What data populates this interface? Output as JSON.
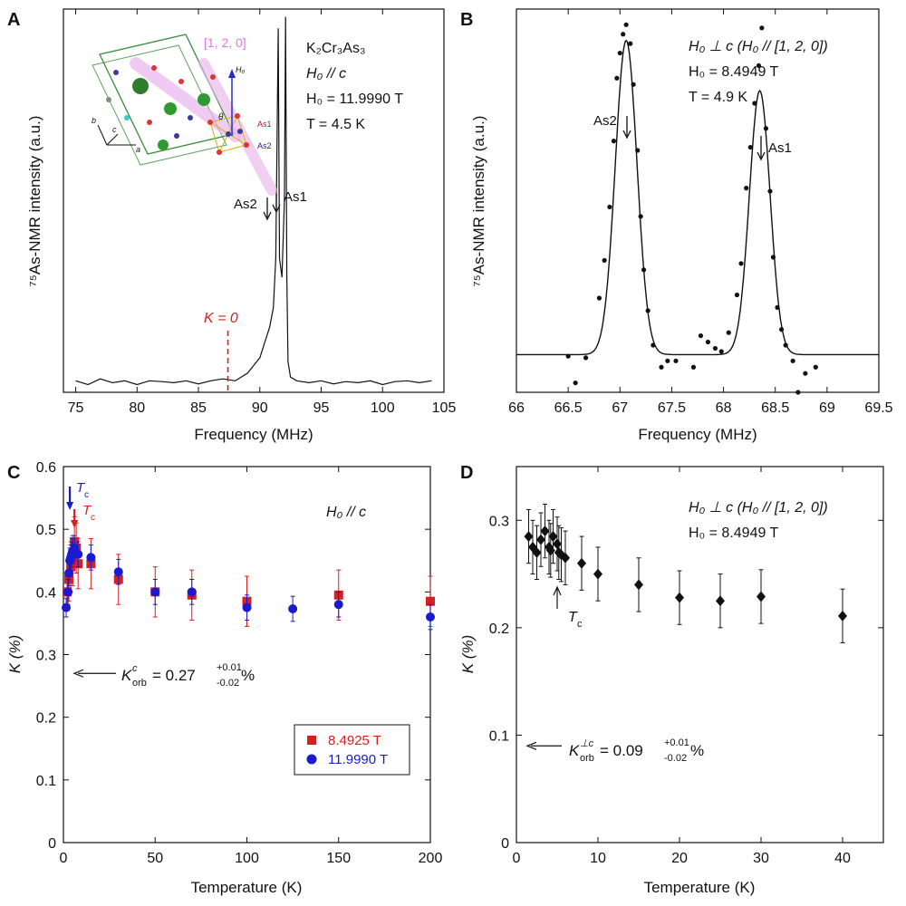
{
  "figure": {
    "colors": {
      "axis": "#111111",
      "red": "#d42020",
      "blue": "#1a1ad0",
      "pink": "#d77be0",
      "green": "#3a8a3a"
    }
  },
  "chart_data": [
    {
      "panel": "A",
      "type": "line",
      "xlabel": "Frequency (MHz)",
      "ylabel": "⁷⁵As-NMR intensity (a.u.)",
      "xlim": [
        74,
        105
      ],
      "xticks": [
        75,
        80,
        85,
        90,
        95,
        100,
        105
      ],
      "ylim": [
        0,
        1
      ],
      "annotations": {
        "compound": "K₂Cr₃As₃",
        "field_dir": "H₀ // c",
        "field": "H₀ = 11.9990 T",
        "temp": "T = 4.5 K",
        "k0": "K = 0",
        "as2": "As2",
        "as1": "As1",
        "inset_dir": "[1, 2, 0]",
        "inset_h0": "H₀",
        "inset_theta": "θ",
        "inset_as1": "As1",
        "inset_as2": "As2",
        "inset_a": "a",
        "inset_b": "b",
        "inset_c": "c"
      },
      "k0_position": 87.4,
      "series": [
        {
          "x": [
            75,
            76,
            77,
            78,
            79,
            80,
            81,
            82,
            83,
            84,
            85,
            86,
            87,
            88,
            89,
            89.5,
            90,
            90.4,
            90.8,
            91.1,
            91.3,
            91.5,
            91.6,
            91.8,
            92.0,
            92.1,
            92.2,
            92.3,
            92.5,
            93,
            94,
            95,
            96,
            97,
            98,
            99,
            100,
            101,
            102,
            103,
            104
          ],
          "y": [
            0.03,
            0.02,
            0.035,
            0.025,
            0.03,
            0.02,
            0.03,
            0.028,
            0.025,
            0.03,
            0.022,
            0.03,
            0.035,
            0.03,
            0.05,
            0.07,
            0.09,
            0.13,
            0.17,
            0.22,
            0.35,
            0.95,
            0.35,
            0.3,
            0.5,
            0.98,
            0.3,
            0.08,
            0.04,
            0.03,
            0.025,
            0.03,
            0.022,
            0.028,
            0.025,
            0.03,
            0.02,
            0.028,
            0.03,
            0.025,
            0.03
          ]
        }
      ]
    },
    {
      "panel": "B",
      "type": "scatter",
      "xlabel": "Frequency (MHz)",
      "ylabel": "⁷⁵As-NMR intensity (a.u.)",
      "xlim": [
        66,
        69.5
      ],
      "xticks": [
        66,
        66.5,
        67,
        67.5,
        68,
        68.5,
        69,
        69.5
      ],
      "ylim": [
        -0.12,
        1.1
      ],
      "annotations": {
        "field_dir": "H₀ ⊥ c (H₀ // [1, 2, 0])",
        "field": "H₀ = 8.4949 T",
        "temp": "T = 4.9 K",
        "as2": "As2",
        "as1": "As1"
      },
      "fit": {
        "baseline": 0.0,
        "peaks": [
          {
            "x0": 67.06,
            "amp": 1.0,
            "sigma": 0.105
          },
          {
            "x0": 68.35,
            "amp": 0.84,
            "sigma": 0.1
          }
        ]
      },
      "points": {
        "x": [
          66.5,
          66.57,
          66.67,
          66.8,
          66.85,
          66.9,
          66.94,
          66.97,
          67.0,
          67.03,
          67.06,
          67.1,
          67.13,
          67.17,
          67.2,
          67.23,
          67.27,
          67.32,
          67.4,
          67.46,
          67.54,
          67.71,
          67.78,
          67.85,
          67.92,
          67.98,
          68.05,
          68.13,
          68.17,
          68.22,
          68.26,
          68.3,
          68.34,
          68.37,
          68.41,
          68.45,
          68.48,
          68.52,
          68.56,
          68.6,
          68.67,
          68.72,
          68.79,
          68.89
        ],
        "y": [
          -0.005,
          -0.09,
          -0.01,
          0.18,
          0.3,
          0.47,
          0.68,
          0.88,
          0.96,
          1.02,
          1.05,
          0.99,
          0.86,
          0.65,
          0.44,
          0.27,
          0.14,
          0.03,
          -0.04,
          -0.02,
          -0.02,
          -0.04,
          0.06,
          0.04,
          0.02,
          0.01,
          0.07,
          0.19,
          0.29,
          0.53,
          0.66,
          0.8,
          0.92,
          1.04,
          0.72,
          0.52,
          0.31,
          0.15,
          0.08,
          0.03,
          -0.02,
          -0.12,
          -0.06,
          -0.04
        ]
      }
    },
    {
      "panel": "C",
      "type": "scatter",
      "xlabel": "Temperature (K)",
      "ylabel": "K (%)",
      "xlim": [
        0,
        200
      ],
      "xticks": [
        0,
        50,
        100,
        150,
        200
      ],
      "ylim": [
        0,
        0.6
      ],
      "yticks": [
        0,
        0.1,
        0.2,
        0.3,
        0.4,
        0.5,
        0.6
      ],
      "annotations": {
        "field_dir": "H₀ // c",
        "korb_text": "K",
        "korb_sup": "c",
        "korb_sub": "orb",
        "korb_value": "= 0.27",
        "korb_plus": "+0.01",
        "korb_minus": "-0.02",
        "korb_unit": " %",
        "tc_label": "T",
        "tc_sub": "c"
      },
      "korb": 0.27,
      "tc_blue": 3.5,
      "tc_red": 6.0,
      "series": [
        {
          "name": "8.4925 T",
          "color": "#d42020",
          "marker": "square",
          "x": [
            2,
            3,
            4,
            5,
            6,
            7,
            8,
            15,
            30,
            50,
            70,
            100,
            150,
            200
          ],
          "y": [
            0.4,
            0.42,
            0.44,
            0.45,
            0.48,
            0.47,
            0.445,
            0.445,
            0.42,
            0.4,
            0.395,
            0.385,
            0.395,
            0.385
          ],
          "err": [
            0.03,
            0.035,
            0.04,
            0.04,
            0.04,
            0.04,
            0.04,
            0.04,
            0.04,
            0.04,
            0.04,
            0.04,
            0.04,
            0.04
          ]
        },
        {
          "name": "11.9990 T",
          "color": "#1a1ad0",
          "marker": "circle",
          "x": [
            1.5,
            2.5,
            3,
            3.5,
            4,
            4.5,
            5,
            6,
            8,
            15,
            30,
            50,
            70,
            100,
            125,
            150,
            200
          ],
          "y": [
            0.375,
            0.4,
            0.43,
            0.45,
            0.455,
            0.46,
            0.465,
            0.47,
            0.46,
            0.455,
            0.432,
            0.4,
            0.4,
            0.375,
            0.373,
            0.38,
            0.36
          ],
          "err": [
            0.015,
            0.02,
            0.02,
            0.02,
            0.02,
            0.02,
            0.02,
            0.02,
            0.02,
            0.02,
            0.02,
            0.02,
            0.02,
            0.02,
            0.02,
            0.02,
            0.02
          ]
        }
      ]
    },
    {
      "panel": "D",
      "type": "scatter",
      "xlabel": "Temperature (K)",
      "ylabel": "K (%)",
      "xlim": [
        0,
        45
      ],
      "xticks": [
        0,
        10,
        20,
        30,
        40
      ],
      "ylim": [
        0,
        0.35
      ],
      "yticks": [
        0,
        0.1,
        0.2,
        0.3
      ],
      "annotations": {
        "field_dir": "H₀ ⊥ c (H₀ // [1, 2, 0])",
        "field": "H₀ = 8.4949 T",
        "korb_text": "K",
        "korb_sup": "⊥c",
        "korb_sub": "orb",
        "korb_value": "= 0.09",
        "korb_plus": "+0.01",
        "korb_minus": "-0.02",
        "korb_unit": "%",
        "tc_label": "T",
        "tc_sub": "c"
      },
      "korb": 0.09,
      "tc": 5.0,
      "series": [
        {
          "marker": "diamond",
          "color": "#111111",
          "x": [
            1.5,
            2.0,
            2.5,
            3.0,
            3.5,
            4.0,
            4.2,
            4.5,
            5.0,
            5.2,
            5.5,
            6.0,
            8.0,
            10.0,
            15.0,
            20.0,
            25.0,
            30.0,
            40.0
          ],
          "y": [
            0.285,
            0.275,
            0.27,
            0.282,
            0.29,
            0.275,
            0.272,
            0.285,
            0.278,
            0.27,
            0.268,
            0.265,
            0.26,
            0.25,
            0.24,
            0.228,
            0.225,
            0.229,
            0.211
          ],
          "err": [
            0.025,
            0.025,
            0.025,
            0.025,
            0.025,
            0.025,
            0.025,
            0.025,
            0.025,
            0.025,
            0.025,
            0.025,
            0.025,
            0.025,
            0.025,
            0.025,
            0.025,
            0.025,
            0.025
          ]
        }
      ]
    }
  ],
  "panels": {
    "A": {
      "label": "A"
    },
    "B": {
      "label": "B"
    },
    "C": {
      "label": "C"
    },
    "D": {
      "label": "D"
    }
  }
}
